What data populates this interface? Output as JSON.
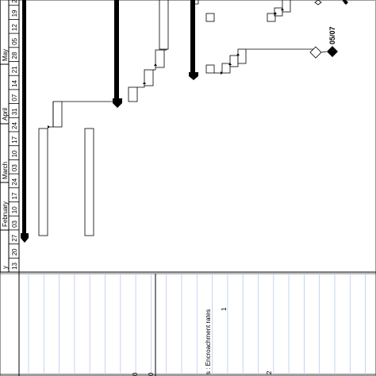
{
  "timescale": {
    "months": [
      "y",
      "February",
      "March",
      "April",
      "May"
    ],
    "weeks": [
      "13",
      "20",
      "27",
      "03",
      "10",
      "17",
      "24",
      "03",
      "10",
      "17",
      "24",
      "31",
      "07",
      "14",
      "21",
      "28",
      "05",
      "12",
      "19",
      "26"
    ]
  },
  "task_rows": {
    "summary_label": "s : Encroachment rates",
    "row_numbers": [
      "1",
      "2"
    ],
    "cut_labels": [
      "0",
      "0"
    ]
  },
  "milestone": {
    "label": "05/07"
  },
  "colors": {
    "bar": "#000000",
    "grid": "#b8c8ef",
    "border": "#000000",
    "fill": "#ffffff"
  }
}
